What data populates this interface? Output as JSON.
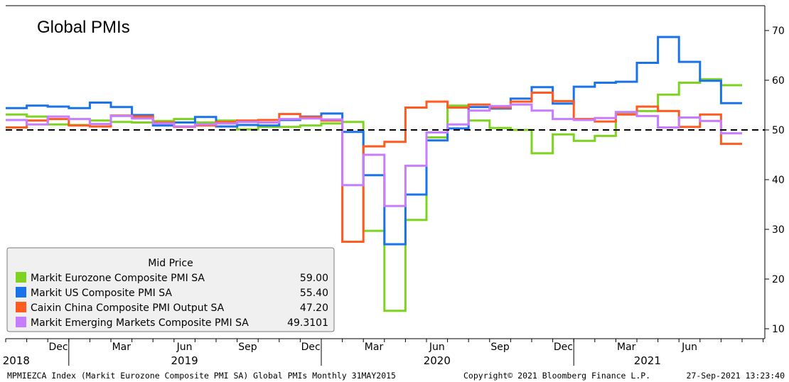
{
  "chart_data": {
    "type": "line",
    "step": true,
    "title": "Global PMIs",
    "x": [
      "2018-10",
      "2018-11",
      "2018-12",
      "2019-01",
      "2019-02",
      "2019-03",
      "2019-04",
      "2019-05",
      "2019-06",
      "2019-07",
      "2019-08",
      "2019-09",
      "2019-10",
      "2019-11",
      "2019-12",
      "2020-01",
      "2020-02",
      "2020-03",
      "2020-04",
      "2020-05",
      "2020-06",
      "2020-07",
      "2020-08",
      "2020-09",
      "2020-10",
      "2020-11",
      "2020-12",
      "2021-01",
      "2021-02",
      "2021-03",
      "2021-04",
      "2021-05",
      "2021-06",
      "2021-07",
      "2021-08",
      "2021-09"
    ],
    "ylim": [
      8,
      75
    ],
    "yticks": [
      10,
      20,
      30,
      40,
      50,
      60,
      70
    ],
    "reference_line": 50,
    "x_month_ticks": [
      {
        "date": "2018-12",
        "label": "Dec"
      },
      {
        "date": "2019-03",
        "label": "Mar"
      },
      {
        "date": "2019-06",
        "label": "Jun"
      },
      {
        "date": "2019-09",
        "label": "Sep"
      },
      {
        "date": "2019-12",
        "label": "Dec"
      },
      {
        "date": "2020-03",
        "label": "Mar"
      },
      {
        "date": "2020-06",
        "label": "Jun"
      },
      {
        "date": "2020-09",
        "label": "Sep"
      },
      {
        "date": "2020-12",
        "label": "Dec"
      },
      {
        "date": "2021-03",
        "label": "Mar"
      },
      {
        "date": "2021-06",
        "label": "Jun"
      }
    ],
    "x_year_labels": [
      {
        "date": "2018-10",
        "label": "2018"
      },
      {
        "date": "2019-06",
        "label": "2019"
      },
      {
        "date": "2020-06",
        "label": "2020"
      },
      {
        "date": "2021-04",
        "label": "2021"
      }
    ],
    "x_year_dividers": [
      "2018-12-31",
      "2019-12-31",
      "2020-12-31"
    ],
    "series": [
      {
        "name": "Markit Eurozone Composite PMI SA",
        "color": "#7ed321",
        "last": "59.00",
        "values": [
          53.1,
          52.7,
          51.1,
          51.0,
          51.9,
          51.6,
          51.5,
          51.8,
          52.2,
          51.5,
          51.9,
          50.1,
          50.6,
          50.6,
          50.9,
          51.3,
          51.6,
          29.7,
          13.6,
          31.9,
          48.5,
          54.9,
          51.9,
          50.4,
          50.0,
          45.3,
          49.1,
          47.8,
          48.8,
          53.2,
          53.8,
          57.1,
          59.5,
          60.2,
          59.0,
          null
        ]
      },
      {
        "name": "Markit US Composite PMI SA",
        "color": "#1a73e8",
        "last": "55.40",
        "values": [
          54.4,
          54.9,
          54.7,
          54.4,
          55.5,
          54.6,
          53.0,
          50.9,
          51.5,
          52.6,
          50.7,
          51.0,
          50.9,
          52.0,
          52.7,
          53.3,
          49.6,
          40.9,
          27.0,
          37.0,
          47.9,
          50.3,
          54.6,
          54.3,
          56.3,
          58.6,
          55.3,
          58.7,
          59.5,
          59.7,
          63.5,
          68.7,
          63.7,
          59.9,
          55.4,
          null
        ]
      },
      {
        "name": "Caixin China Composite PMI Output SA",
        "color": "#ff5a1f",
        "last": "47.20",
        "values": [
          50.5,
          51.9,
          52.2,
          50.9,
          50.7,
          52.9,
          52.7,
          51.5,
          50.6,
          50.9,
          51.6,
          51.9,
          52.0,
          53.2,
          52.6,
          51.9,
          27.5,
          46.7,
          47.6,
          54.5,
          55.7,
          54.5,
          55.1,
          54.5,
          55.7,
          57.5,
          55.8,
          52.2,
          51.7,
          53.1,
          54.7,
          53.8,
          50.6,
          53.1,
          47.2,
          null
        ]
      },
      {
        "name": "Markit Emerging Markets Composite PMI SA",
        "color": "#c77dff",
        "last": "49.3101",
        "values": [
          52.0,
          51.1,
          52.7,
          52.2,
          51.2,
          52.8,
          52.3,
          51.3,
          50.7,
          51.1,
          51.3,
          51.6,
          51.5,
          52.2,
          52.3,
          52.1,
          38.9,
          45.0,
          34.7,
          42.8,
          49.5,
          51.1,
          53.9,
          54.8,
          55.1,
          53.9,
          52.2,
          52.0,
          52.4,
          53.6,
          52.8,
          50.5,
          52.5,
          51.8,
          49.3101,
          null
        ]
      }
    ]
  },
  "legend": {
    "header": "Mid Price"
  },
  "footer": {
    "left": "MPMIEZCA Index (Markit Eurozone Composite PMI SA) Global PMIs  Monthly 31MAY2015",
    "center": "Copyright© 2021 Bloomberg Finance L.P.",
    "right": "27-Sep-2021 13:23:40"
  }
}
